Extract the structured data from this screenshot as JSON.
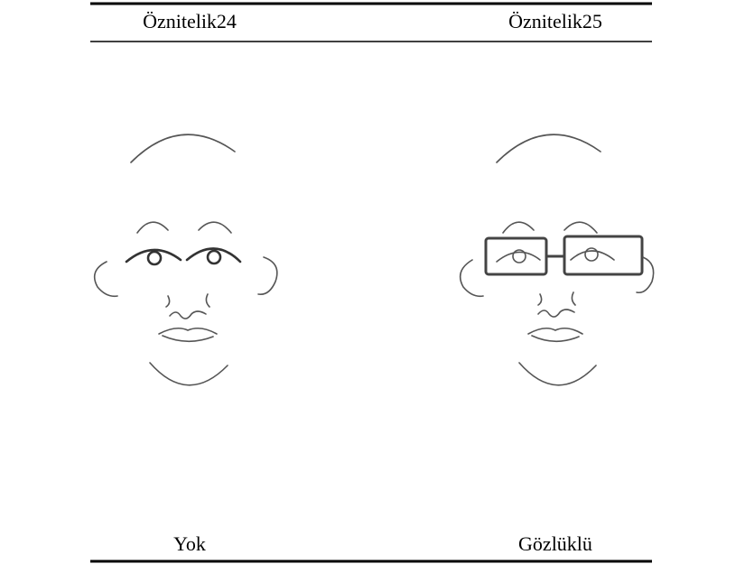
{
  "table": {
    "header": [
      "Öznitelik24",
      "Öznitelik25"
    ],
    "rows": [
      [
        "Yok",
        "Gözlüklü"
      ]
    ]
  }
}
